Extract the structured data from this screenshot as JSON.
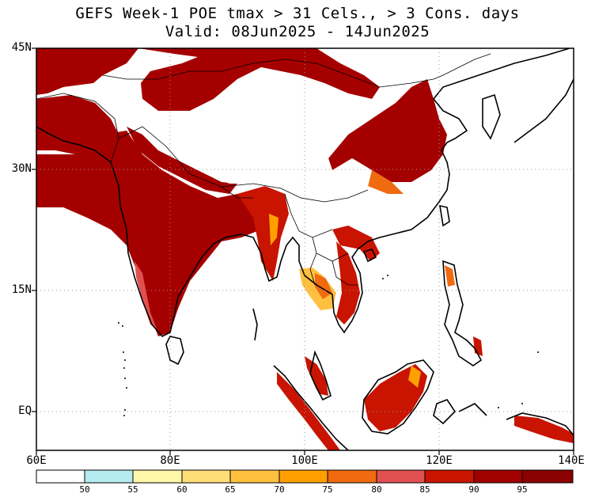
{
  "title": {
    "line1": "GEFS Week-1 POE tmax > 31 Cels., > 3 Cons. days",
    "line2": "Valid: 08Jun2025 - 14Jun2025"
  },
  "axes": {
    "lat_labels": [
      "45N",
      "30N",
      "15N",
      "EQ"
    ],
    "lon_labels": [
      "60E",
      "80E",
      "100E",
      "120E",
      "140E"
    ]
  },
  "colorbar": {
    "labels": [
      "50",
      "55",
      "60",
      "65",
      "70",
      "75",
      "80",
      "85",
      "90",
      "95"
    ],
    "colors": [
      "#ffffff",
      "#b4ecf0",
      "#fff8aa",
      "#ffde78",
      "#ffc040",
      "#ffa000",
      "#f06a10",
      "#e05050",
      "#c81400",
      "#a00000",
      "#8b0000"
    ]
  },
  "map": {
    "region": "South and East Asia",
    "colors": {
      "very_high": "#a50000",
      "high": "#c81400",
      "mid": "#f06a10",
      "low": "#ffc040",
      "ocean": "#ffffff",
      "coast": "#000000"
    }
  }
}
